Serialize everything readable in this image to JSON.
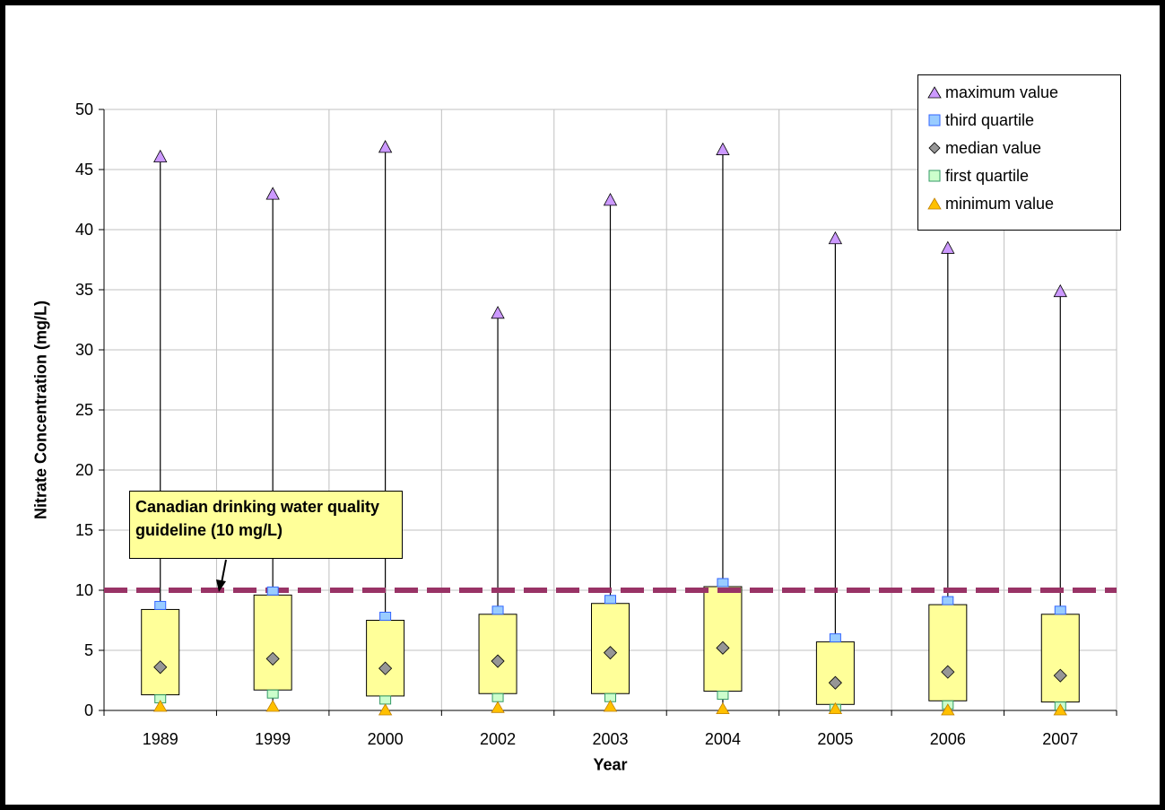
{
  "chart_data": {
    "type": "box",
    "title": "",
    "xlabel": "Year",
    "ylabel": "Nitrate Concentration (mg/L)",
    "ylim": [
      0,
      50
    ],
    "yticks": [
      0,
      5,
      10,
      15,
      20,
      25,
      30,
      35,
      40,
      45,
      50
    ],
    "categories": [
      "1989",
      "1999",
      "2000",
      "2002",
      "2003",
      "2004",
      "2005",
      "2006",
      "2007"
    ],
    "series": [
      {
        "name": "maximum value",
        "values": [
          46.0,
          42.9,
          46.8,
          33.0,
          42.4,
          46.6,
          39.2,
          38.4,
          34.8
        ]
      },
      {
        "name": "third quartile",
        "values": [
          8.4,
          9.6,
          7.5,
          8.0,
          8.9,
          10.3,
          5.7,
          8.8,
          8.0
        ]
      },
      {
        "name": "median value",
        "values": [
          3.6,
          4.3,
          3.5,
          4.1,
          4.8,
          5.2,
          2.3,
          3.2,
          2.9
        ]
      },
      {
        "name": "first quartile",
        "values": [
          1.3,
          1.7,
          1.2,
          1.4,
          1.4,
          1.6,
          0.5,
          0.8,
          0.7
        ]
      },
      {
        "name": "minimum value",
        "values": [
          0.3,
          0.3,
          0.0,
          0.2,
          0.3,
          0.1,
          0.1,
          0.0,
          0.0
        ]
      }
    ],
    "guideline": {
      "value": 10,
      "label": "Canadian drinking water quality guideline (10 mg/L)",
      "color": "#993366"
    },
    "colors": {
      "box_fill": "#ffff99",
      "maximum": "#cc99ff",
      "third_quartile": "#99ccff",
      "median": "#969696",
      "first_quartile": "#ccffcc",
      "minimum": "#ffc000",
      "grid": "#c0c0c0"
    },
    "grid": true,
    "legend_position": "top-right"
  }
}
